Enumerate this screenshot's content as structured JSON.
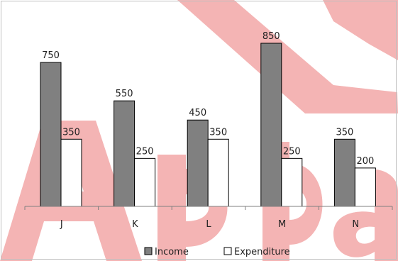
{
  "chart_data": {
    "type": "bar",
    "categories": [
      "J",
      "K",
      "L",
      "M",
      "N"
    ],
    "series": [
      {
        "name": "Income",
        "values": [
          750,
          550,
          450,
          850,
          350
        ],
        "color": "#808080"
      },
      {
        "name": "Expenditure",
        "values": [
          350,
          250,
          350,
          250,
          200
        ],
        "color": "#ffffff"
      }
    ],
    "ylim": [
      0,
      900
    ],
    "grid": false,
    "legend_position": "bottom",
    "watermark": "Adda"
  },
  "colors": {
    "watermark": "#f4b4b4",
    "bar_stroke": "#000000",
    "axis": "#7f7f7f",
    "frame": "#bfbfbf"
  }
}
